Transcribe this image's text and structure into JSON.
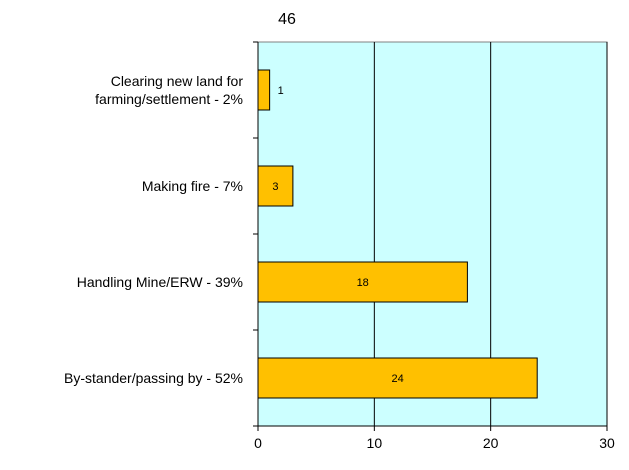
{
  "chart_data": {
    "type": "bar",
    "orientation": "horizontal",
    "title": "46",
    "categories": [
      [
        "Clearing new land for",
        "farming/settlement - 2%"
      ],
      [
        "Making fire - 7%"
      ],
      [
        "Handling Mine/ERW - 39%"
      ],
      [
        "By-stander/passing by - 52%"
      ]
    ],
    "values": [
      1,
      3,
      18,
      24
    ],
    "data_labels": [
      "1",
      "3",
      "18",
      "24"
    ],
    "xlim": [
      0,
      30
    ],
    "xticks": [
      "0",
      "10",
      "20",
      "30"
    ],
    "xlabel": "",
    "ylabel": "",
    "grid": true,
    "legend": "none",
    "colors": {
      "bar_fill": "#ffc000",
      "bar_stroke": "#000000",
      "plot_background": "#ccffff",
      "gridline": "#000000"
    }
  }
}
